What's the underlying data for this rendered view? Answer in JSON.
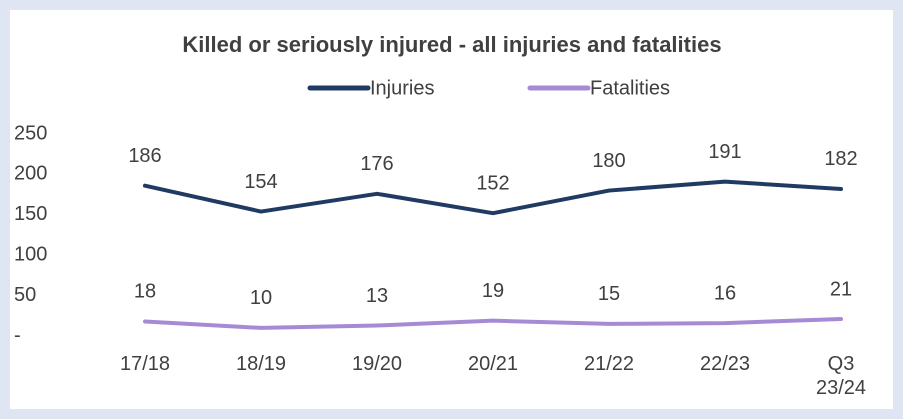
{
  "chart_data": {
    "type": "line",
    "title": "Killed or seriously injured - all injuries and fatalities",
    "categories": [
      "17/18",
      "18/19",
      "19/20",
      "20/21",
      "21/22",
      "22/23",
      "Q3 23/24"
    ],
    "series": [
      {
        "name": "Injuries",
        "color": "#1f3b63",
        "values": [
          186,
          154,
          176,
          152,
          180,
          191,
          182
        ]
      },
      {
        "name": "Fatalities",
        "color": "#a58bd6",
        "values": [
          18,
          10,
          13,
          19,
          15,
          16,
          21
        ]
      }
    ],
    "ylim": [
      0,
      250
    ],
    "yticks": [
      {
        "value": 0,
        "label": "-"
      },
      50,
      100,
      150,
      200,
      250
    ],
    "grid": false,
    "legend": "top"
  }
}
